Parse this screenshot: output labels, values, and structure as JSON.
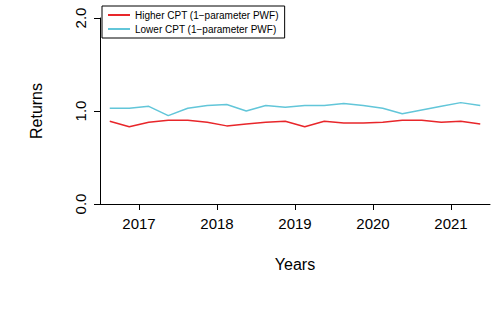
{
  "chart_data": {
    "type": "line",
    "x_label": "Years",
    "y_label": "Returns",
    "x": [
      2016.625,
      2016.875,
      2017.125,
      2017.375,
      2017.625,
      2017.875,
      2018.125,
      2018.375,
      2018.625,
      2018.875,
      2019.125,
      2019.375,
      2019.625,
      2019.875,
      2020.125,
      2020.375,
      2020.625,
      2020.875,
      2021.125,
      2021.375
    ],
    "series": [
      {
        "name": "Higher CPT (1−parameter PWF)",
        "color": "#e8262a",
        "line_style": "solid",
        "values": [
          0.89,
          0.83,
          0.88,
          0.9,
          0.9,
          0.88,
          0.84,
          0.86,
          0.88,
          0.89,
          0.83,
          0.89,
          0.87,
          0.87,
          0.88,
          0.9,
          0.9,
          0.88,
          0.89,
          0.86
        ]
      },
      {
        "name": "Lower CPT (1−parameter PWF)",
        "color": "#62c6d9",
        "line_style": "solid",
        "values": [
          1.03,
          1.03,
          1.05,
          0.95,
          1.03,
          1.06,
          1.07,
          1.0,
          1.06,
          1.04,
          1.06,
          1.06,
          1.08,
          1.06,
          1.03,
          0.97,
          1.01,
          1.05,
          1.09,
          1.06
        ]
      }
    ],
    "xlim": [
      2016.5,
      2021.5
    ],
    "xticks": [
      2017,
      2018,
      2019,
      2020,
      2021
    ],
    "ylim": [
      0,
      2
    ],
    "yticks": [
      {
        "value": 0,
        "label": "0.0"
      },
      {
        "value": 1,
        "label": "1.0"
      },
      {
        "value": 2,
        "label": "2.0"
      }
    ],
    "grid": false,
    "legend": "upper left"
  }
}
